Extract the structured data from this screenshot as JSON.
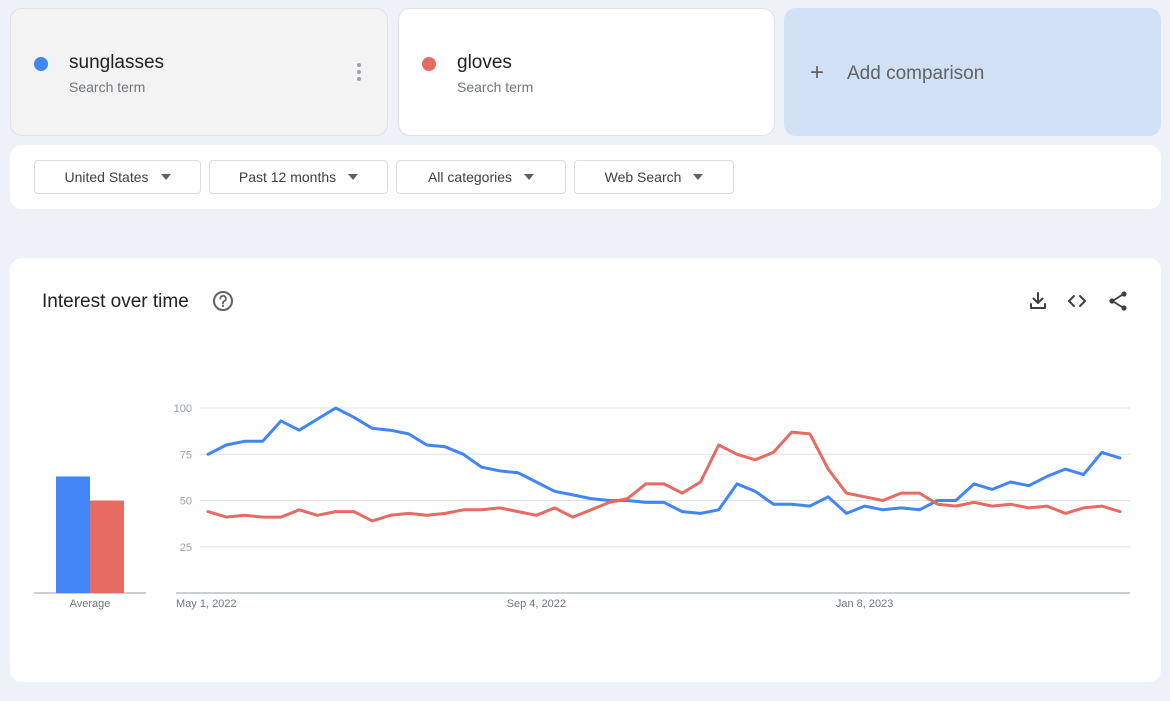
{
  "terms": [
    {
      "name": "sunglasses",
      "subtitle": "Search term",
      "color": "#4285f4"
    },
    {
      "name": "gloves",
      "subtitle": "Search term",
      "color": "#e56b63"
    }
  ],
  "add_comparison": {
    "icon": "+",
    "label": "Add comparison"
  },
  "filters": {
    "region": "United States",
    "time": "Past 12 months",
    "category": "All categories",
    "property": "Web Search"
  },
  "chart_section": {
    "title": "Interest over time",
    "icons": [
      "help-icon",
      "download-icon",
      "embed-code-icon",
      "share-icon"
    ]
  },
  "chart_data": {
    "type": "line",
    "title": "Interest over time",
    "ylim": [
      0,
      100
    ],
    "y_ticks": [
      25,
      50,
      75,
      100
    ],
    "x_tick_labels": [
      "May 1, 2022",
      "Sep 4, 2022",
      "Jan 8, 2023"
    ],
    "x_tick_index": [
      0,
      18,
      36
    ],
    "grid": true,
    "series": [
      {
        "name": "sunglasses",
        "color": "#4285f4",
        "values": [
          75,
          80,
          82,
          82,
          93,
          88,
          94,
          100,
          95,
          89,
          88,
          86,
          80,
          79,
          75,
          68,
          66,
          65,
          60,
          55,
          53,
          51,
          50,
          50,
          49,
          49,
          44,
          43,
          45,
          59,
          55,
          48,
          48,
          47,
          52,
          43,
          47,
          45,
          46,
          45,
          50,
          50,
          59,
          56,
          60,
          58,
          63,
          67,
          64,
          76,
          73
        ]
      },
      {
        "name": "gloves",
        "color": "#e56b63",
        "values": [
          44,
          41,
          42,
          41,
          41,
          45,
          42,
          44,
          44,
          39,
          42,
          43,
          42,
          43,
          45,
          45,
          46,
          44,
          42,
          46,
          41,
          45,
          49,
          51,
          59,
          59,
          54,
          60,
          80,
          75,
          72,
          76,
          87,
          86,
          67,
          54,
          52,
          50,
          54,
          54,
          48,
          47,
          49,
          47,
          48,
          46,
          47,
          43,
          46,
          47,
          44
        ]
      }
    ],
    "average": {
      "label": "Average",
      "values": [
        63,
        50
      ]
    }
  }
}
